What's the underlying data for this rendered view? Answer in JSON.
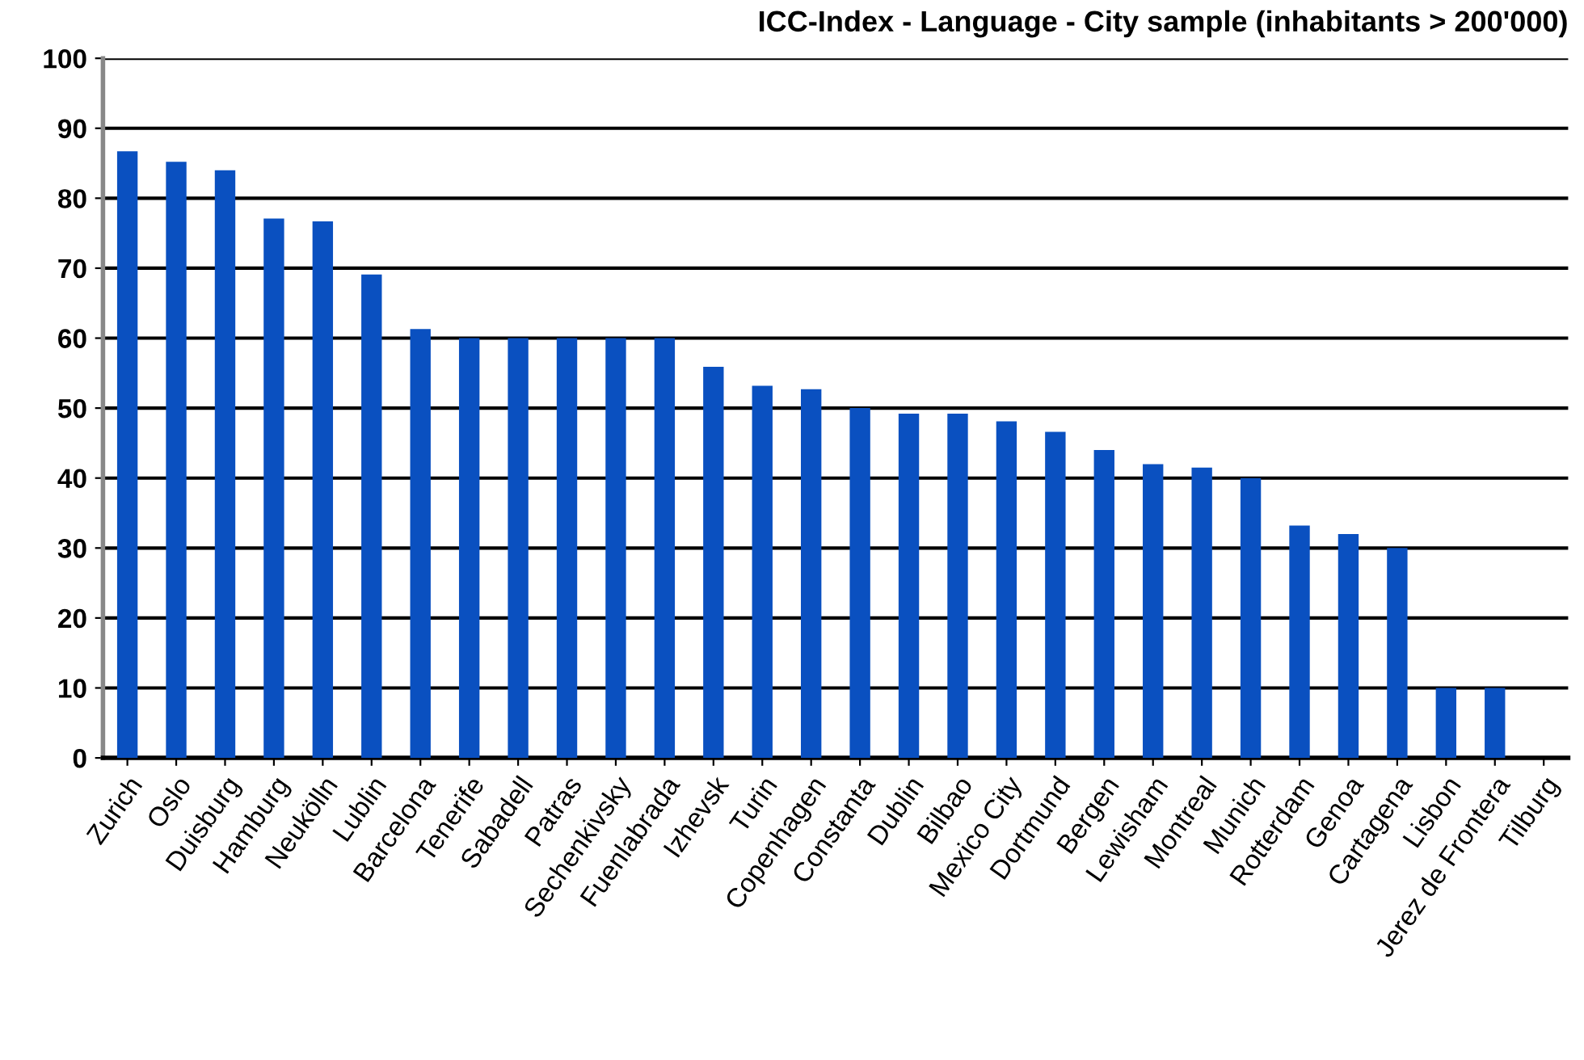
{
  "chart_data": {
    "type": "bar",
    "title": "ICC-Index - Language - City sample (inhabitants > 200'000)",
    "categories": [
      "Zurich",
      "Oslo",
      "Duisburg",
      "Hamburg",
      "Neukölln",
      "Lublin",
      "Barcelona",
      "Tenerife",
      "Sabadell",
      "Patras",
      "Sechenkivsky",
      "Fuenlabrada",
      "Izhevsk",
      "Turin",
      "Copenhagen",
      "Constanta",
      "Dublin",
      "Bilbao",
      "Mexico City",
      "Dortmund",
      "Bergen",
      "Lewisham",
      "Montreal",
      "Munich",
      "Rotterdam",
      "Genoa",
      "Cartagena",
      "Lisbon",
      "Jerez de Frontera",
      "Tilburg"
    ],
    "values": [
      86.7,
      85.2,
      84,
      77.1,
      76.7,
      69.1,
      61.3,
      60,
      60,
      60,
      60,
      60,
      55.9,
      53.2,
      52.7,
      50,
      49.2,
      49.2,
      48.1,
      46.6,
      44,
      42,
      41.5,
      40,
      33.2,
      32,
      30,
      10,
      10,
      0
    ],
    "color": "#0a50c0",
    "ylim": [
      0,
      100
    ],
    "yticks": [
      0,
      10,
      20,
      30,
      40,
      50,
      60,
      70,
      80,
      90,
      100
    ],
    "grid": "y"
  }
}
